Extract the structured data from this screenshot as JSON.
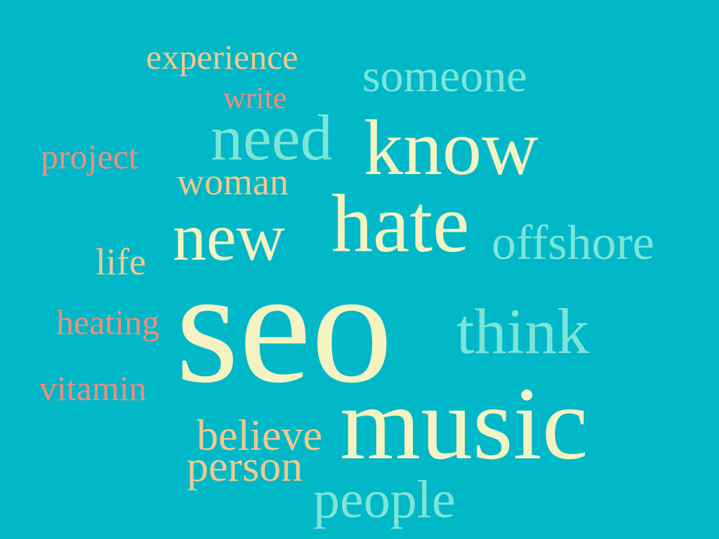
{
  "colors": {
    "background": "#00b8c8",
    "cream": "#f5f3c1",
    "mint": "#7de5d6",
    "peach": "#f2c98c",
    "salmon": "#ef8e7d"
  },
  "words": {
    "seo": {
      "text": "seo",
      "color": "cream"
    },
    "music": {
      "text": "music",
      "color": "cream"
    },
    "know": {
      "text": "know",
      "color": "cream"
    },
    "hate": {
      "text": "hate",
      "color": "cream"
    },
    "new": {
      "text": "new",
      "color": "cream"
    },
    "need": {
      "text": "need",
      "color": "mint"
    },
    "someone": {
      "text": "someone",
      "color": "mint"
    },
    "offshore": {
      "text": "offshore",
      "color": "mint"
    },
    "think": {
      "text": "think",
      "color": "mint"
    },
    "people": {
      "text": "people",
      "color": "mint"
    },
    "experience": {
      "text": "experience",
      "color": "peach"
    },
    "woman": {
      "text": "woman",
      "color": "peach"
    },
    "life": {
      "text": "life",
      "color": "peach"
    },
    "believe": {
      "text": "believe",
      "color": "peach"
    },
    "person": {
      "text": "person",
      "color": "peach"
    },
    "write": {
      "text": "write",
      "color": "salmon"
    },
    "project": {
      "text": "project",
      "color": "salmon"
    },
    "heating": {
      "text": "heating",
      "color": "salmon"
    },
    "vitamin": {
      "text": "vitamin",
      "color": "salmon"
    }
  }
}
